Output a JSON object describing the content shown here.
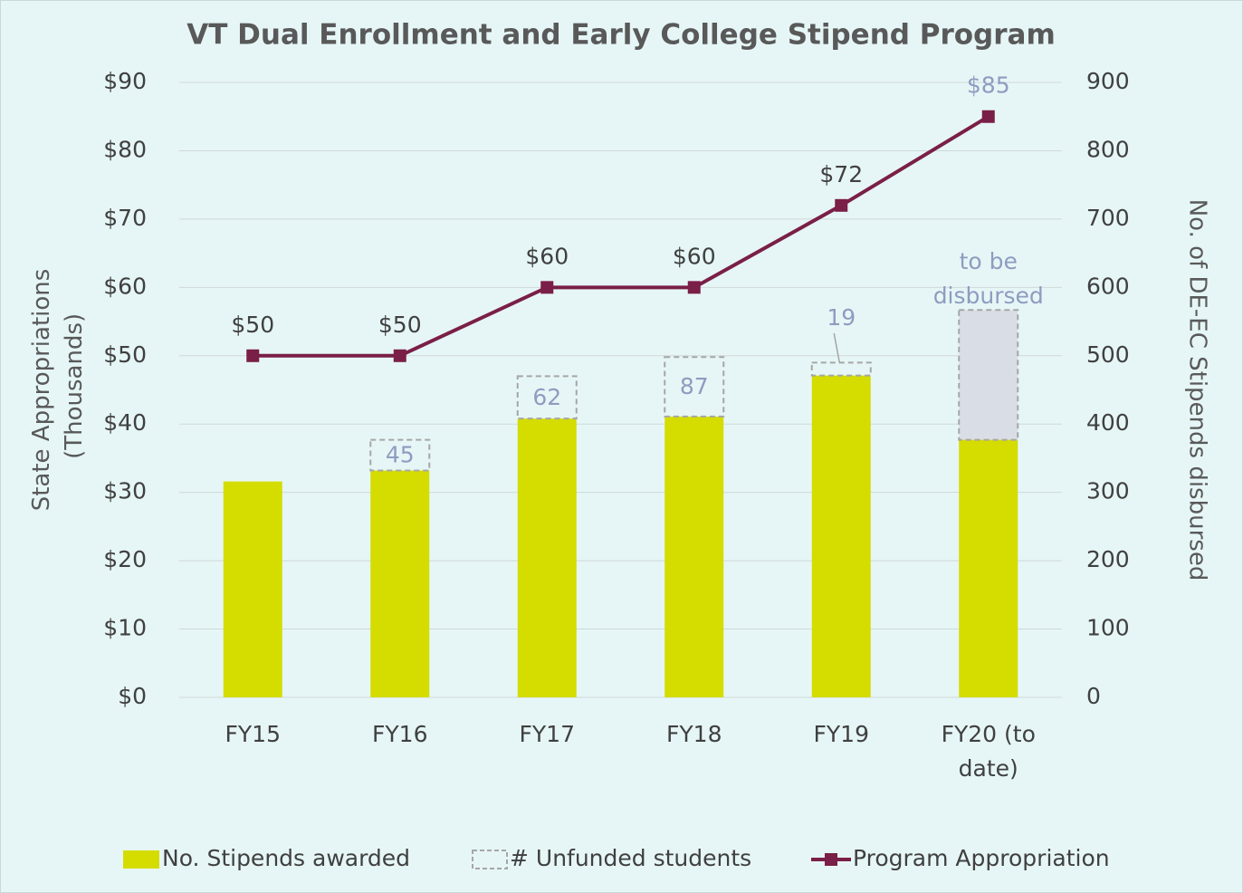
{
  "chart_data": {
    "type": "bar-line",
    "title": "VT Dual Enrollment and Early College Stipend Program",
    "ylabel": "State Appropriations (Thousands)",
    "y2label": "No. of DE-EC Stipends disbursed",
    "categories": [
      "FY15",
      "FY16",
      "FY17",
      "FY18",
      "FY19",
      "FY20 (to date)"
    ],
    "series": [
      {
        "name": "No. Stipends awarded",
        "type": "bar",
        "axis": "y2",
        "color": "#d4dc00",
        "values": [
          316,
          332,
          408,
          411,
          471,
          377
        ]
      },
      {
        "name": "# Unfunded students",
        "type": "stacked-dashed",
        "axis": "y2",
        "color": "#a6a6a6",
        "values": [
          null,
          45,
          62,
          87,
          19,
          190
        ],
        "data_labels": [
          false,
          true,
          true,
          true,
          true,
          false
        ],
        "label_color": "#8e9cc0",
        "last_fill": "#d9dee6"
      },
      {
        "name": "Program Appropriation",
        "type": "line",
        "axis": "y",
        "color": "#7a1f47",
        "values": [
          50,
          50,
          60,
          60,
          72,
          85
        ],
        "value_labels": [
          "$50",
          "$50",
          "$60",
          "$60",
          "$72",
          "$85"
        ]
      }
    ],
    "annotations": [
      "to be disbursed"
    ],
    "ylim": [
      0,
      90
    ],
    "yticks": [
      {
        "value": 0,
        "label": "$0"
      },
      {
        "value": 10,
        "label": "$10"
      },
      {
        "value": 20,
        "label": "$20"
      },
      {
        "value": 30,
        "label": "$30"
      },
      {
        "value": 40,
        "label": "$40"
      },
      {
        "value": 50,
        "label": "$50"
      },
      {
        "value": 60,
        "label": "$60"
      },
      {
        "value": 70,
        "label": "$70"
      },
      {
        "value": 80,
        "label": "$80"
      },
      {
        "value": 90,
        "label": "$90"
      }
    ],
    "y2lim": [
      0,
      900
    ],
    "y2ticks": [
      0,
      100,
      200,
      300,
      400,
      500,
      600,
      700,
      800,
      900
    ],
    "grid": true,
    "legend": "bottom"
  }
}
